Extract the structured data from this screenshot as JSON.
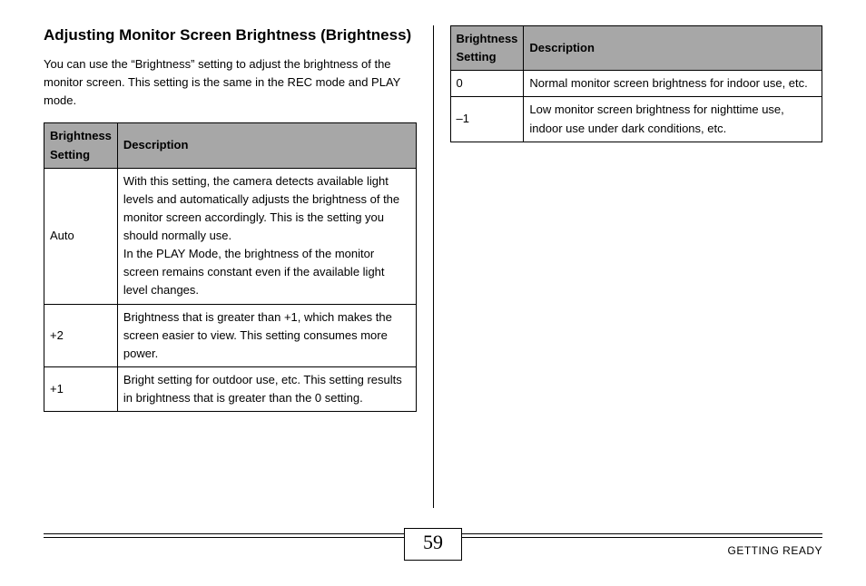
{
  "heading": "Adjusting Monitor Screen Brightness (Brightness)",
  "intro": "You can use the “Brightness” setting to adjust the brightness of the monitor screen. This setting is the same in the REC mode and PLAY mode.",
  "tableLeft": {
    "headers": {
      "setting": "Brightness Setting",
      "desc": "Description"
    },
    "rows": [
      {
        "setting": "Auto",
        "desc": "With this setting, the camera detects available light levels and automatically adjusts the brightness of the monitor screen accordingly. This is the setting you should normally use.\nIn the PLAY Mode, the brightness of the monitor screen remains constant even if the available light level changes."
      },
      {
        "setting": "+2",
        "desc": "Brightness that is greater than +1, which makes the screen easier to view. This setting consumes more power."
      },
      {
        "setting": "+1",
        "desc": "Bright setting for outdoor use, etc. This setting results in brightness that is greater than the 0 setting."
      }
    ]
  },
  "tableRight": {
    "headers": {
      "setting": "Brightness Setting",
      "desc": "Description"
    },
    "rows": [
      {
        "setting": "0",
        "desc": "Normal monitor screen brightness for indoor use, etc."
      },
      {
        "setting": "–1",
        "desc": "Low monitor screen brightness for nighttime use, indoor use under dark conditions, etc."
      }
    ]
  },
  "footer": {
    "pageNumber": "59",
    "sectionLabel": "GETTING READY"
  },
  "colors": {
    "tableHeaderBg": "#a7a7a7",
    "border": "#000000",
    "text": "#000000",
    "background": "#ffffff"
  },
  "typography": {
    "headingSize": 17,
    "bodySize": 13,
    "footerLabelSize": 12,
    "pageNumSize": 22
  }
}
